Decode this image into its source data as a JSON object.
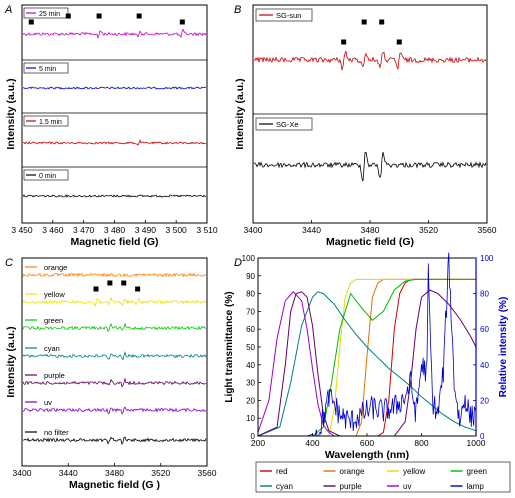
{
  "chart_data": [
    {
      "panel_label": "A",
      "type": "line",
      "xlabel": "Magnetic field (G)",
      "ylabel": "Intensity (a.u.)",
      "xlim": [
        3450,
        3510
      ],
      "xticks": [
        3450,
        3460,
        3470,
        3480,
        3490,
        3500,
        3510
      ],
      "series": [
        {
          "name": "25 min",
          "color": "#cc00cc",
          "signal_peaks_G": [
            3475,
            3488,
            3502
          ]
        },
        {
          "name": "5 min",
          "color": "#0000cc"
        },
        {
          "name": "1.5 min",
          "color": "#cc0000",
          "signal_peaks_G": [
            3488
          ]
        },
        {
          "name": "0 min",
          "color": "#000000"
        }
      ],
      "markers": "filled squares above signal lines"
    },
    {
      "panel_label": "B",
      "type": "line",
      "xlabel": "Magnetic field (G)",
      "ylabel": "Intensity (a.u.)",
      "xlim": [
        3400,
        3560
      ],
      "xticks": [
        3400,
        3440,
        3480,
        3520,
        3560
      ],
      "series": [
        {
          "name": "SG-sun",
          "color": "#cc0000",
          "signal_peaks_G": [
            3462,
            3476,
            3488,
            3500
          ]
        },
        {
          "name": "SG-Xe",
          "color": "#000000",
          "signal_peaks_G": [
            3476,
            3488
          ]
        }
      ],
      "markers": "filled squares above signal lines"
    },
    {
      "panel_label": "C",
      "type": "line",
      "xlabel": "Magnetic field (G )",
      "ylabel": "Intensity (a.u.)",
      "xlim": [
        3400,
        3560
      ],
      "xticks": [
        3400,
        3440,
        3480,
        3520,
        3560
      ],
      "series": [
        {
          "name": "orange",
          "color": "#ff8000"
        },
        {
          "name": "yellow",
          "color": "#e6e600",
          "signal_peaks_G": [
            3464,
            3476,
            3488,
            3500
          ]
        },
        {
          "name": "green",
          "color": "#00cc00",
          "signal_peaks_G": [
            3476,
            3488
          ]
        },
        {
          "name": "cyan",
          "color": "#008080",
          "signal_peaks_G": [
            3476,
            3488
          ]
        },
        {
          "name": "purple",
          "color": "#660066",
          "signal_peaks_G": [
            3476,
            3488
          ]
        },
        {
          "name": "uv",
          "color": "#8000cc",
          "signal_peaks_G": [
            3476,
            3488
          ]
        },
        {
          "name": "no filter",
          "color": "#000000",
          "signal_peaks_G": [
            3476,
            3488
          ]
        }
      ],
      "markers": "filled squares above signal lines"
    },
    {
      "panel_label": "D",
      "type": "line",
      "xlabel": "Wavelength (nm)",
      "ylabel": "Light transmittance (%)",
      "y2label": "Relative intensity (%)",
      "xlim": [
        200,
        1000
      ],
      "ylim": [
        0,
        100
      ],
      "y2lim": [
        0,
        100
      ],
      "xticks": [
        200,
        400,
        600,
        800,
        1000
      ],
      "yticks": [
        0,
        10,
        20,
        30,
        40,
        50,
        60,
        70,
        80,
        90,
        100
      ],
      "y2ticks": [
        0,
        20,
        40,
        60,
        80,
        100
      ],
      "legend_position": "bottom",
      "series": [
        {
          "name": "red",
          "color": "#cc0000",
          "x": [
            600,
            640,
            660,
            680,
            700,
            720,
            740,
            760,
            1000
          ],
          "y": [
            0,
            0,
            2,
            20,
            60,
            80,
            86,
            88,
            88
          ]
        },
        {
          "name": "orange",
          "color": "#e07000",
          "x": [
            500,
            560,
            580,
            600,
            620,
            640,
            660,
            1000
          ],
          "y": [
            0,
            0,
            8,
            45,
            78,
            86,
            88,
            88
          ]
        },
        {
          "name": "yellow",
          "color": "#e6d800",
          "x": [
            400,
            460,
            480,
            500,
            520,
            540,
            560,
            1000
          ],
          "y": [
            0,
            0,
            15,
            50,
            78,
            86,
            88,
            88
          ]
        },
        {
          "name": "green",
          "color": "#00bb00",
          "x": [
            400,
            440,
            470,
            500,
            540,
            580,
            620,
            660,
            700,
            740,
            780,
            820,
            1000
          ],
          "y": [
            0,
            5,
            30,
            60,
            80,
            72,
            65,
            70,
            82,
            87,
            88,
            88,
            88
          ]
        },
        {
          "name": "cyan",
          "color": "#008080",
          "x": [
            200,
            280,
            320,
            360,
            400,
            420,
            440,
            480,
            520,
            560,
            600,
            640,
            680,
            720,
            760,
            800,
            840,
            880,
            920,
            960,
            1000
          ],
          "y": [
            0,
            5,
            30,
            62,
            78,
            81,
            80,
            74,
            65,
            57,
            50,
            44,
            38,
            33,
            28,
            22,
            17,
            12,
            8,
            5,
            3
          ]
        },
        {
          "name": "purple",
          "color": "#660066",
          "x": [
            200,
            270,
            300,
            320,
            340,
            360,
            380,
            400,
            420,
            440,
            460,
            500,
            700,
            740,
            760,
            780,
            800,
            830,
            860,
            900,
            940,
            980,
            1000
          ],
          "y": [
            0,
            5,
            40,
            70,
            80,
            81,
            78,
            62,
            35,
            12,
            3,
            0,
            0,
            8,
            30,
            60,
            78,
            82,
            80,
            74,
            66,
            56,
            50
          ]
        },
        {
          "name": "uv",
          "color": "#9900cc",
          "x": [
            200,
            240,
            270,
            300,
            330,
            360,
            380,
            400,
            420,
            440,
            460,
            480,
            500,
            1000
          ],
          "y": [
            2,
            20,
            55,
            76,
            81,
            76,
            60,
            38,
            18,
            6,
            2,
            0,
            0,
            0
          ]
        },
        {
          "name": "lamp",
          "color": "#0000cc",
          "axis": "right",
          "x": [
            200,
            380,
            420,
            440,
            460,
            480,
            500,
            540,
            580,
            620,
            660,
            700,
            740,
            760,
            780,
            800,
            820,
            825,
            840,
            860,
            880,
            900,
            920,
            940,
            960,
            980,
            1000
          ],
          "y": [
            0,
            0,
            2,
            10,
            22,
            18,
            12,
            8,
            12,
            16,
            14,
            16,
            22,
            30,
            12,
            40,
            36,
            92,
            20,
            12,
            36,
            100,
            30,
            8,
            22,
            10,
            14
          ]
        }
      ]
    }
  ]
}
